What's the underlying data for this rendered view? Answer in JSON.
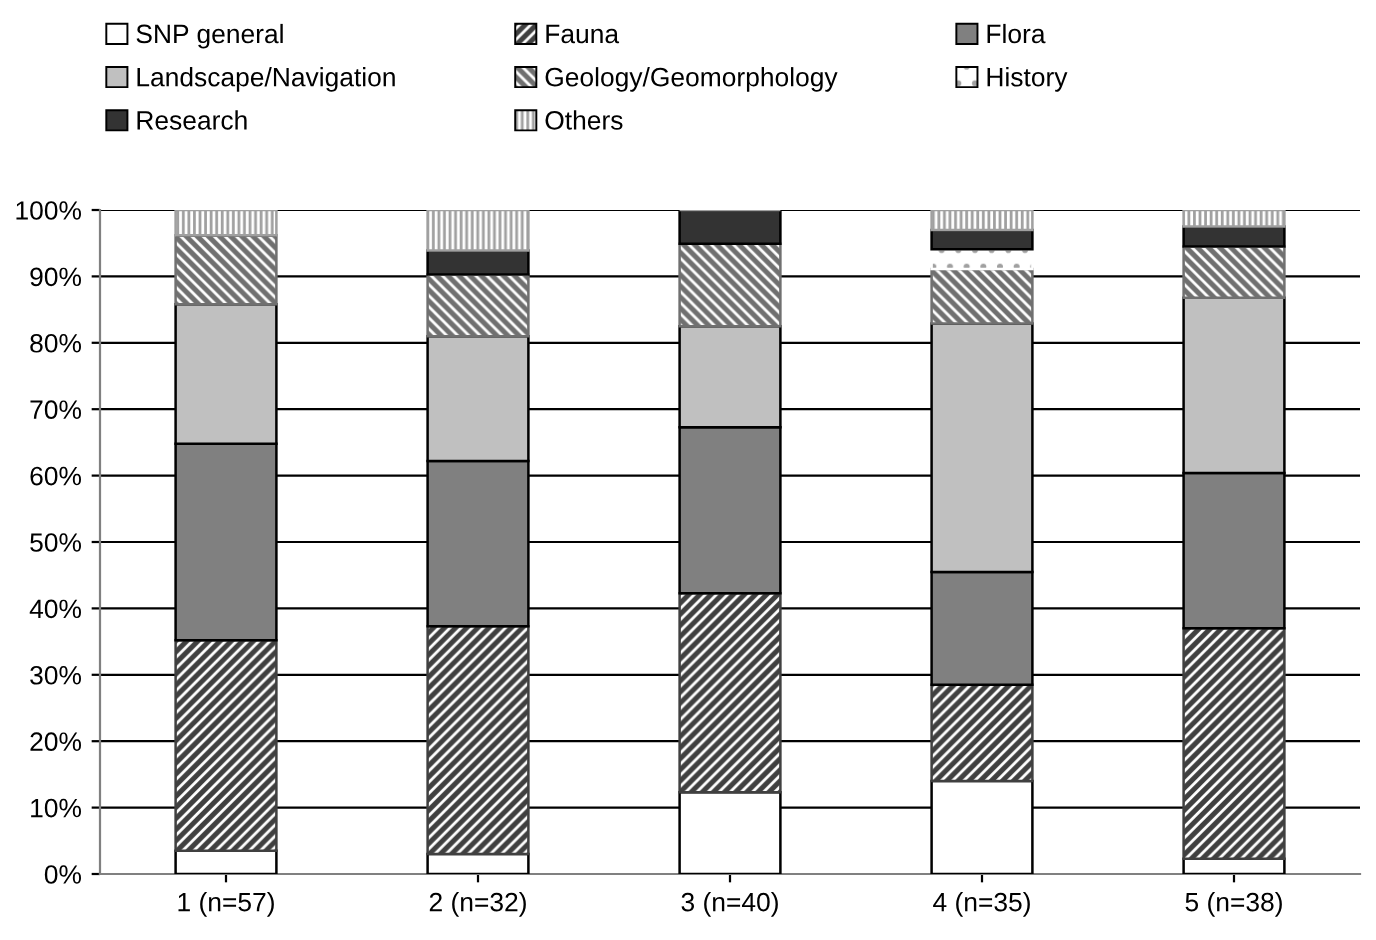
{
  "chart_data": {
    "type": "bar",
    "stacked": true,
    "categories": [
      "1 (n=57)",
      "2 (n=32)",
      "3 (n=40)",
      "4 (n=35)",
      "5 (n=38)"
    ],
    "series": [
      {
        "name": "SNP general",
        "color": "#ffffff",
        "values": [
          3.5,
          3.0,
          12.3,
          14.0,
          2.3
        ]
      },
      {
        "name": "Fauna",
        "color": "#404040",
        "values": [
          31.7,
          34.3,
          30.0,
          14.5,
          34.7
        ]
      },
      {
        "name": "Flora",
        "color": "#808080",
        "values": [
          29.6,
          24.9,
          25.0,
          17.0,
          23.4
        ]
      },
      {
        "name": "Landscape/Navigation",
        "color": "#c0c0c0",
        "values": [
          21.0,
          18.8,
          15.2,
          37.4,
          26.4
        ]
      },
      {
        "name": "Geology/Geomorphology",
        "color": "#707070",
        "values": [
          10.4,
          9.3,
          12.4,
          8.2,
          7.7
        ]
      },
      {
        "name": "History",
        "color": "#ffffff",
        "values": [
          0,
          0,
          0,
          3.0,
          0
        ]
      },
      {
        "name": "Research",
        "color": "#333333",
        "values": [
          0,
          3.6,
          5.1,
          2.9,
          3.0
        ]
      },
      {
        "name": "Others",
        "color": "#a0a0a0",
        "values": [
          3.8,
          6.1,
          0,
          3.0,
          2.5
        ]
      }
    ],
    "ylim": [
      0,
      100
    ],
    "yticks": [
      {
        "value": 0,
        "label": "0%"
      },
      {
        "value": 10,
        "label": "10%"
      },
      {
        "value": 20,
        "label": "20%"
      },
      {
        "value": 30,
        "label": "30%"
      },
      {
        "value": 40,
        "label": "40%"
      },
      {
        "value": 50,
        "label": "50%"
      },
      {
        "value": 60,
        "label": "60%"
      },
      {
        "value": 70,
        "label": "70%"
      },
      {
        "value": 80,
        "label": "80%"
      },
      {
        "value": 90,
        "label": "90%"
      },
      {
        "value": 100,
        "label": "100%"
      }
    ],
    "grid": "y",
    "legend": "top"
  }
}
